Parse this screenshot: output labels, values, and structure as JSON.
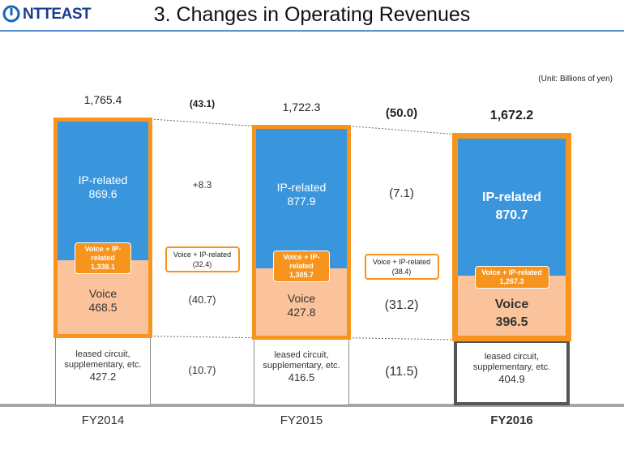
{
  "header": {
    "logo": "NTTEAST",
    "title": "3. Changes in Operating Revenues"
  },
  "chart_data": {
    "type": "stacked_bar",
    "unit": "(Unit: Billions of yen)",
    "categories": [
      "FY2014",
      "FY2015",
      "FY2016"
    ],
    "series": [
      {
        "name": "leased circuit, supplementary, etc.",
        "color": "#ffffff",
        "values": [
          427.2,
          416.5,
          404.9
        ],
        "changes": [
          -10.7,
          -11.5
        ],
        "change_labels": [
          "(10.7)",
          "(11.5)"
        ]
      },
      {
        "name": "Voice",
        "color": "#fbc39b",
        "values": [
          468.5,
          427.8,
          396.5
        ],
        "changes": [
          -40.7,
          -31.2
        ],
        "change_labels": [
          "(40.7)",
          "(31.2)"
        ]
      },
      {
        "name": "IP-related",
        "color": "#3a96dc",
        "values": [
          869.6,
          877.9,
          870.7
        ],
        "changes": [
          8.3,
          -7.1
        ],
        "change_labels": [
          "+8.3",
          "(7.1)"
        ]
      }
    ],
    "combined": {
      "name": "Voice + IP-related",
      "color": "#f7941d",
      "values": [
        1338.1,
        1305.7,
        1267.3
      ],
      "value_labels": [
        "1,338.1",
        "1,305.7",
        "1,267.3"
      ],
      "changes": [
        -32.4,
        -38.4
      ],
      "change_labels": [
        "(32.4)",
        "(38.4)"
      ]
    },
    "totals": {
      "values": [
        1765.4,
        1722.3,
        1672.2
      ],
      "value_labels": [
        "1,765.4",
        "1,722.3",
        "1,672.2"
      ],
      "changes": [
        -43.1,
        -50.0
      ],
      "change_labels": [
        "(43.1)",
        "(50.0)"
      ]
    }
  }
}
